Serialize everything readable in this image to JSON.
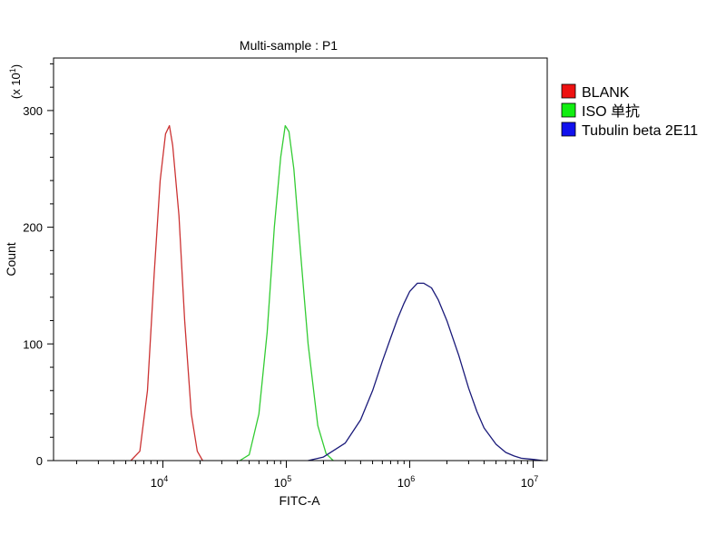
{
  "chart_data": {
    "type": "line",
    "title": "Multi-sample : P1",
    "xlabel": "FITC-A",
    "ylabel": "Count",
    "y_multiplier_label": "(x 10",
    "y_multiplier_exp": "1",
    "x_scale": "log",
    "xlim": [
      1300,
      13000000
    ],
    "ylim": [
      0,
      345
    ],
    "x_ticks": [
      {
        "value": 10000,
        "base": "10",
        "exp": "4"
      },
      {
        "value": 100000,
        "base": "10",
        "exp": "5"
      },
      {
        "value": 1000000,
        "base": "10",
        "exp": "6"
      },
      {
        "value": 10000000,
        "base": "10",
        "exp": "7"
      }
    ],
    "y_ticks": [
      {
        "value": 0,
        "label": "0"
      },
      {
        "value": 100,
        "label": "100"
      },
      {
        "value": 200,
        "label": "200"
      },
      {
        "value": 300,
        "label": "300"
      }
    ],
    "legend_position": "right",
    "series": [
      {
        "name": "BLANK",
        "color": "#cc3333",
        "legend_color": "#ee1111",
        "x": [
          5500,
          6500,
          7500,
          8500,
          9500,
          10500,
          11300,
          12000,
          13500,
          15000,
          17000,
          19000,
          21000
        ],
        "y": [
          0,
          8,
          60,
          160,
          240,
          280,
          287,
          270,
          210,
          120,
          40,
          8,
          0
        ]
      },
      {
        "name": "ISO 单抗",
        "color": "#33cc33",
        "legend_color": "#11ee11",
        "x": [
          42000,
          50000,
          60000,
          70000,
          80000,
          90000,
          98000,
          105000,
          115000,
          130000,
          150000,
          180000,
          210000,
          240000
        ],
        "y": [
          0,
          5,
          40,
          110,
          200,
          260,
          287,
          282,
          250,
          180,
          100,
          30,
          6,
          0
        ]
      },
      {
        "name": "Tubulin beta 2E11",
        "color": "#1a1a7a",
        "legend_color": "#1111ee",
        "x": [
          150000,
          200000,
          300000,
          400000,
          500000,
          600000,
          700000,
          800000,
          900000,
          1000000,
          1150000,
          1300000,
          1500000,
          1700000,
          2000000,
          2500000,
          3000000,
          3500000,
          4000000,
          5000000,
          6000000,
          7000000,
          8000000,
          10000000,
          12000000
        ],
        "y": [
          0,
          3,
          15,
          35,
          60,
          85,
          105,
          122,
          135,
          145,
          152,
          152,
          148,
          138,
          120,
          90,
          62,
          42,
          28,
          14,
          7,
          4,
          2,
          1,
          0
        ]
      }
    ]
  }
}
